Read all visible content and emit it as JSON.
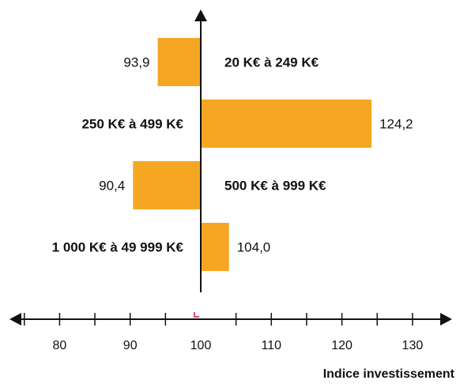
{
  "chart_data": {
    "type": "bar",
    "orientation": "horizontal",
    "baseline": 100,
    "categories": [
      "20 K€ à 249 K€",
      "250 K€ à 499 K€",
      "500 K€ à 999 K€",
      "1 000 K€ à 49 999 K€"
    ],
    "values": [
      93.9,
      124.2,
      90.4,
      104.0
    ],
    "value_labels": [
      "93,9",
      "124,2",
      "90,4",
      "104,0"
    ],
    "xlabel": "Indice investissement",
    "xlim": [
      76,
      136
    ],
    "xticks": [
      80,
      90,
      100,
      110,
      120,
      130
    ],
    "xtick_labels": [
      "80",
      "90",
      "100",
      "110",
      "120",
      "130"
    ],
    "grid": false,
    "colors": {
      "bar": "#F5A623",
      "axis": "#111111",
      "origin_marker": "#E0457B"
    }
  }
}
